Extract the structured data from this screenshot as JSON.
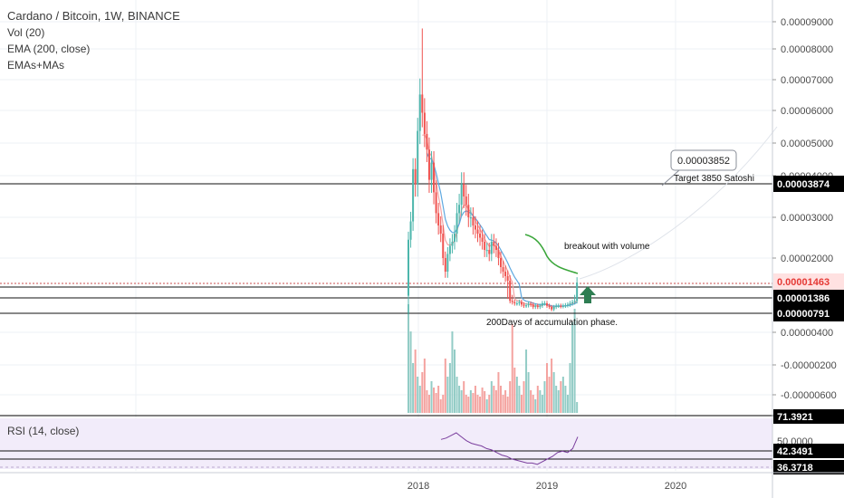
{
  "header": {
    "symbol_line": "Cardano / Bitcoin, 1W, BINANCE",
    "indicators": [
      "Vol (20)",
      "EMA (200, close)",
      "EMAs+MAs"
    ]
  },
  "rsi_pane": {
    "label": "RSI (14, close)"
  },
  "annotations": {
    "price_callout": "0.00003852",
    "target": "Target 3850 Satoshi",
    "breakout": "breakout with volume",
    "accumulation": "200Days of accumulation phase."
  },
  "colors": {
    "up": "#4db6ac",
    "down": "#ef5350",
    "volume_up": "#93ccc6",
    "volume_down": "#f4a3a0",
    "ema_fast": "#f4a4a4",
    "ema_slow": "#5ea8e0",
    "ema_green": "#3aa63a",
    "rsi_line": "#7b3f9e",
    "rsi_band": "#f2ecfa",
    "arrow": "#2e7d52"
  },
  "chart_data": [
    {
      "type": "candlestick",
      "title": "Cardano / Bitcoin, 1W, BINANCE",
      "x_tick_labels": [
        "2018",
        "2019",
        "2020"
      ],
      "y_tick_labels": [
        "0.00009000",
        "0.00008000",
        "0.00007000",
        "0.00006000",
        "0.00005000",
        "0.00004000",
        "0.00003000",
        "0.00002000",
        "0.00000400",
        "-0.00000200",
        "-0.00000600"
      ],
      "price_labels": [
        {
          "value": "0.00003874",
          "style": "dark"
        },
        {
          "value": "0.00001463",
          "style": "red"
        },
        {
          "value": "0.00001386",
          "style": "dark"
        },
        {
          "value": "0.00000791",
          "style": "dark"
        }
      ],
      "horizontal_lines": [
        3.874e-05,
        1.463e-05,
        1.386e-05,
        7.91e-06
      ],
      "series_close": [
        2.45e-05,
        2.9e-05,
        4.2e-05,
        3.8e-05,
        5.4e-05,
        6.6e-05,
        6e-05,
        5.3e-05,
        4.8e-05,
        3.9e-05,
        4.4e-05,
        3.6e-05,
        3.1e-05,
        2.8e-05,
        2.6e-05,
        2e-05,
        1.7e-05,
        2.1e-05,
        2.3e-05,
        2.4e-05,
        2.6e-05,
        3.1e-05,
        3.3e-05,
        3.8e-05,
        3.5e-05,
        3.3e-05,
        3e-05,
        3e-05,
        2.8e-05,
        2.7e-05,
        2.6e-05,
        2.5e-05,
        2.4e-05,
        2.2e-05,
        2.2e-05,
        2.1e-05,
        2.4e-05,
        2.3e-05,
        2.2e-05,
        2e-05,
        1.8e-05,
        1.7e-05,
        1.6e-05,
        1.5e-05,
        1.3e-05,
        1.25e-05,
        1.2e-05,
        1.2e-05,
        1.25e-05,
        1.15e-05,
        1.1e-05,
        1.12e-05,
        1.18e-05,
        1.15e-05,
        1.05e-05,
        1.1e-05,
        1.05e-05,
        1.1e-05,
        1.2e-05,
        1.2e-05,
        1.1e-05,
        1.05e-05,
        9.5e-06,
        1.05e-05,
        1.1e-05,
        1.1e-05,
        1.08e-05,
        1.1e-05,
        1.12e-05,
        1.15e-05,
        1.2e-05,
        1.25e-05,
        1.3e-05,
        1.46e-05
      ]
    },
    {
      "type": "line",
      "title": "RSI (14, close)",
      "y_tick_labels": [
        "71.3921",
        "50.0000",
        "42.3491",
        "36.3718"
      ],
      "series": [
        {
          "name": "RSI (14, close)",
          "values": [
            55,
            56,
            58,
            60,
            57,
            54,
            52,
            51,
            50,
            48,
            47,
            45,
            43,
            42,
            40,
            39,
            38,
            37,
            37,
            36,
            38,
            40,
            42,
            45,
            46,
            45,
            48,
            57
          ]
        }
      ]
    }
  ]
}
